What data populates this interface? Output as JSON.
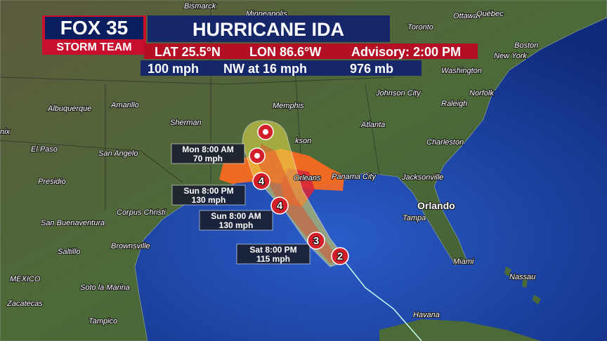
{
  "header": {
    "logo": "FOX 35",
    "logo_sub": "STORM TEAM",
    "title": "HURRICANE IDA",
    "lat": "LAT 25.5°N",
    "lon": "LON 86.6°W",
    "advisory": "Advisory: 2:00 PM",
    "winds": "100 mph",
    "movement": "NW at 16 mph",
    "pressure": "976 mb"
  },
  "cities": [
    "Bismarck",
    "Minneapolis",
    "Ottawa",
    "Québec",
    "Toronto",
    "Boston",
    "New York",
    "Washington",
    "Norfolk",
    "Johnson City",
    "Raleigh",
    "Memphis",
    "Amarillo",
    "Albuquerque",
    "Sherman",
    "Atlanta",
    "Charleston",
    "El Paso",
    "San Angelo",
    "kson",
    "Orleans",
    "Panama City",
    "Jacksonville",
    "Presidio",
    "Corpus Christi",
    "Orlando",
    "Tampa",
    "San Buenaventura",
    "Saltillo",
    "Brownsville",
    "Miami",
    "Nassau",
    "MEXICO",
    "Soto la Marina",
    "Zacatecas",
    "Tampico",
    "Havana",
    "nix"
  ],
  "forecast_points": [
    {
      "time": "Mon 8:00 AM",
      "wind": "70 mph"
    },
    {
      "time": "Sun 8:00 PM",
      "wind": "130 mph"
    },
    {
      "time": "Sun 8:00 AM",
      "wind": "130 mph"
    },
    {
      "time": "Sat 8:00 PM",
      "wind": "115 mph"
    }
  ],
  "storm_markers": [
    "4",
    "4",
    "3",
    "2"
  ]
}
